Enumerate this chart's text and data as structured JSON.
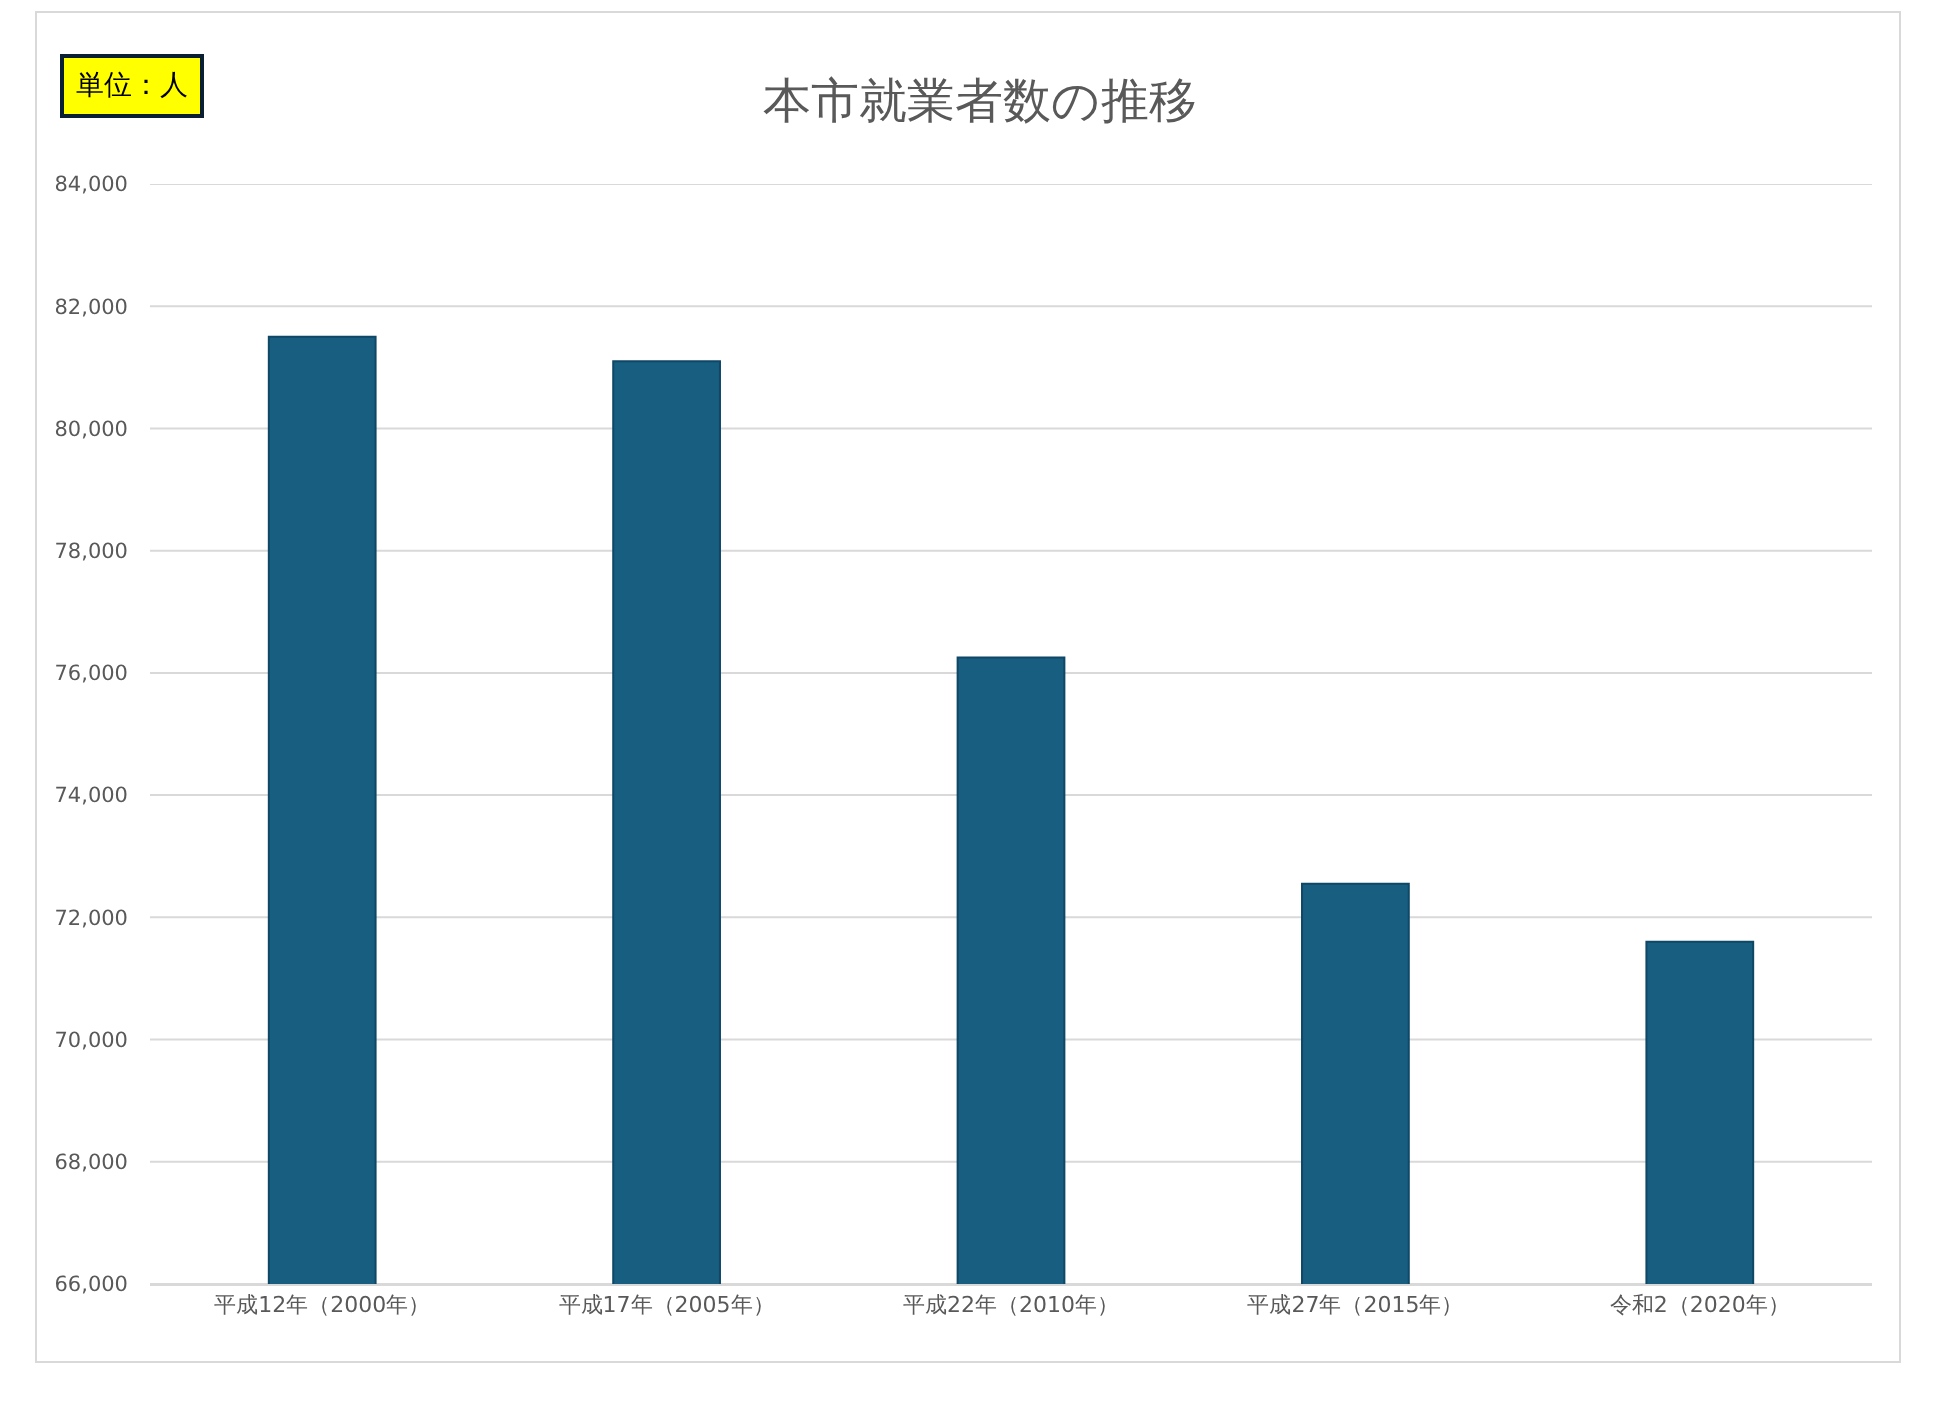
{
  "chart_data": {
    "type": "bar",
    "title": "本市就業者数の推移",
    "annotations": [
      "単位：人"
    ],
    "categories": [
      "平成12年（2000年）",
      "平成17年（2005年）",
      "平成22年（2010年）",
      "平成27年（2015年）",
      "令和2（2020年）"
    ],
    "values": [
      81500,
      81100,
      76250,
      72550,
      71600
    ],
    "color": "#175e81",
    "ylim": [
      66000,
      84000
    ],
    "yticks": [
      {
        "value": 66000,
        "label": "66,000"
      },
      {
        "value": 68000,
        "label": "68,000"
      },
      {
        "value": 70000,
        "label": "70,000"
      },
      {
        "value": 72000,
        "label": "72,000"
      },
      {
        "value": 74000,
        "label": "74,000"
      },
      {
        "value": 76000,
        "label": "76,000"
      },
      {
        "value": 78000,
        "label": "78,000"
      },
      {
        "value": 80000,
        "label": "80,000"
      },
      {
        "value": 82000,
        "label": "82,000"
      },
      {
        "value": 84000,
        "label": "84,000"
      }
    ],
    "grid": "y"
  }
}
